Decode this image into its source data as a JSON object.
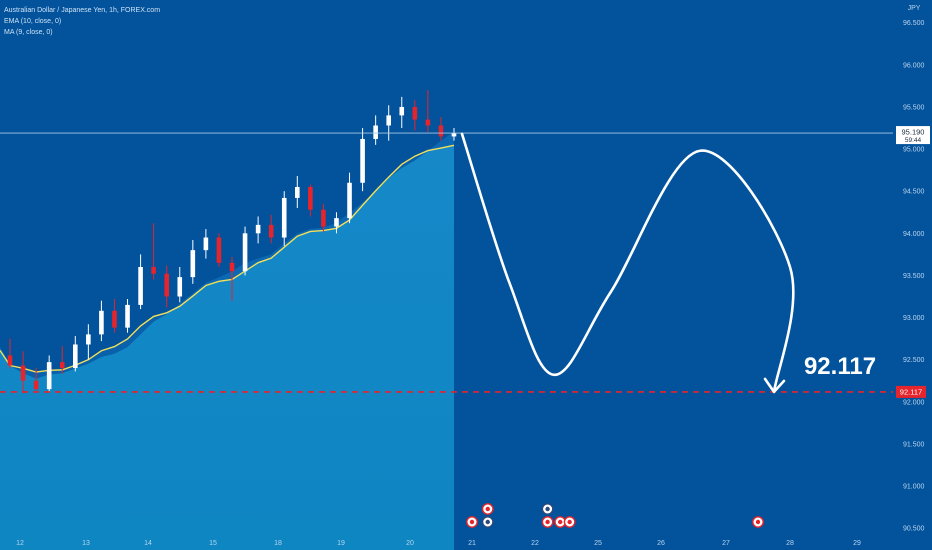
{
  "header": {
    "symbol_line": "Australian Dollar / Japanese Yen, 1h, FOREX.com",
    "ema_line": "EMA (10, close, 0)",
    "ma_line": "MA (9, close, 0)"
  },
  "chart_data": {
    "type": "candlestick",
    "currency": "JPY",
    "y_ticks": [
      "96.500",
      "96.000",
      "95.500",
      "95.000",
      "94.500",
      "94.000",
      "93.500",
      "93.000",
      "92.500",
      "92.000",
      "91.500",
      "91.000",
      "90.500"
    ],
    "y_tick_values": [
      96.5,
      96.0,
      95.5,
      95.0,
      94.5,
      94.0,
      93.5,
      93.0,
      92.5,
      92.0,
      91.5,
      91.0,
      90.5
    ],
    "ylim": [
      90.24,
      96.77
    ],
    "x_ticks": [
      "12",
      "13",
      "14",
      "15",
      "18",
      "19",
      "20",
      "21",
      "22",
      "25",
      "26",
      "27",
      "28",
      "29"
    ],
    "current_price": {
      "value": 95.19,
      "label": "95.190",
      "countdown": "59:44"
    },
    "target": {
      "value": 92.117,
      "label": "92.117",
      "big_label": "92.117"
    },
    "candles": [
      {
        "o": 92.55,
        "h": 92.75,
        "l": 92.4,
        "c": 92.43
      },
      {
        "o": 92.43,
        "h": 92.6,
        "l": 92.1,
        "c": 92.25
      },
      {
        "o": 92.25,
        "h": 92.4,
        "l": 92.13,
        "c": 92.15
      },
      {
        "o": 92.15,
        "h": 92.55,
        "l": 92.12,
        "c": 92.47
      },
      {
        "o": 92.47,
        "h": 92.66,
        "l": 92.33,
        "c": 92.4
      },
      {
        "o": 92.4,
        "h": 92.78,
        "l": 92.36,
        "c": 92.68
      },
      {
        "o": 92.68,
        "h": 92.92,
        "l": 92.5,
        "c": 92.8
      },
      {
        "o": 92.8,
        "h": 93.2,
        "l": 92.72,
        "c": 93.08
      },
      {
        "o": 93.08,
        "h": 93.22,
        "l": 92.82,
        "c": 92.88
      },
      {
        "o": 92.88,
        "h": 93.22,
        "l": 92.82,
        "c": 93.15
      },
      {
        "o": 93.15,
        "h": 93.75,
        "l": 93.1,
        "c": 93.6
      },
      {
        "o": 93.6,
        "h": 94.12,
        "l": 93.45,
        "c": 93.52
      },
      {
        "o": 93.52,
        "h": 93.62,
        "l": 93.12,
        "c": 93.25
      },
      {
        "o": 93.25,
        "h": 93.6,
        "l": 93.18,
        "c": 93.48
      },
      {
        "o": 93.48,
        "h": 93.92,
        "l": 93.4,
        "c": 93.8
      },
      {
        "o": 93.8,
        "h": 94.05,
        "l": 93.7,
        "c": 93.95
      },
      {
        "o": 93.95,
        "h": 94.0,
        "l": 93.6,
        "c": 93.65
      },
      {
        "o": 93.65,
        "h": 93.72,
        "l": 93.2,
        "c": 93.55
      },
      {
        "o": 93.55,
        "h": 94.08,
        "l": 93.5,
        "c": 94.0
      },
      {
        "o": 94.0,
        "h": 94.2,
        "l": 93.88,
        "c": 94.1
      },
      {
        "o": 94.1,
        "h": 94.22,
        "l": 93.88,
        "c": 93.95
      },
      {
        "o": 93.95,
        "h": 94.5,
        "l": 93.85,
        "c": 94.42
      },
      {
        "o": 94.42,
        "h": 94.68,
        "l": 94.3,
        "c": 94.55
      },
      {
        "o": 94.55,
        "h": 94.58,
        "l": 94.2,
        "c": 94.28
      },
      {
        "o": 94.28,
        "h": 94.35,
        "l": 94.02,
        "c": 94.08
      },
      {
        "o": 94.08,
        "h": 94.25,
        "l": 94.0,
        "c": 94.18
      },
      {
        "o": 94.18,
        "h": 94.72,
        "l": 94.12,
        "c": 94.6
      },
      {
        "o": 94.6,
        "h": 95.25,
        "l": 94.5,
        "c": 95.12
      },
      {
        "o": 95.12,
        "h": 95.4,
        "l": 95.05,
        "c": 95.28
      },
      {
        "o": 95.28,
        "h": 95.52,
        "l": 95.1,
        "c": 95.4
      },
      {
        "o": 95.4,
        "h": 95.62,
        "l": 95.25,
        "c": 95.5
      },
      {
        "o": 95.5,
        "h": 95.58,
        "l": 95.22,
        "c": 95.35
      },
      {
        "o": 95.35,
        "h": 95.7,
        "l": 95.2,
        "c": 95.28
      },
      {
        "o": 95.28,
        "h": 95.38,
        "l": 95.1,
        "c": 95.15
      },
      {
        "o": 95.15,
        "h": 95.25,
        "l": 95.1,
        "c": 95.19
      }
    ],
    "forecast_path": [
      {
        "t": 21.0,
        "p": 95.18
      },
      {
        "t": 21.6,
        "p": 93.4
      },
      {
        "t": 22.3,
        "p": 92.32
      },
      {
        "t": 23.2,
        "p": 93.3
      },
      {
        "t": 24.6,
        "p": 94.98
      },
      {
        "t": 26.0,
        "p": 93.6
      },
      {
        "t": 27.0,
        "p": 92.117
      }
    ],
    "event_markers": [
      {
        "x": 21.0,
        "row": 2,
        "kind": "flag"
      },
      {
        "x": 21.25,
        "row": 1,
        "kind": "flag"
      },
      {
        "x": 21.25,
        "row": 2,
        "kind": "bell"
      },
      {
        "x": 22.2,
        "row": 1,
        "kind": "bell"
      },
      {
        "x": 22.2,
        "row": 2,
        "kind": "flag"
      },
      {
        "x": 22.4,
        "row": 2,
        "kind": "flag"
      },
      {
        "x": 22.55,
        "row": 2,
        "kind": "flag"
      },
      {
        "x": 25.5,
        "row": 2,
        "kind": "flag"
      }
    ]
  }
}
